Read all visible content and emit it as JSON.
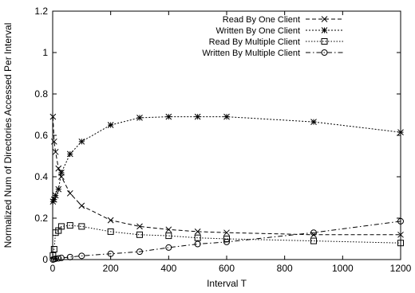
{
  "chart_data": {
    "type": "line",
    "title": "",
    "xlabel": "Interval T",
    "ylabel": "Normalized Num of Directories Accessed Per Interval",
    "xlim": [
      0,
      1200
    ],
    "ylim": [
      0,
      1.2
    ],
    "xticks": [
      0,
      200,
      400,
      600,
      800,
      1000,
      1200
    ],
    "yticks": [
      0,
      0.2,
      0.4,
      0.6,
      0.8,
      1,
      1.2
    ],
    "xtick_labels": [
      "0",
      "200",
      "400",
      "600",
      "800",
      "1000",
      "1200"
    ],
    "ytick_labels": [
      "0",
      "0.2",
      "0.4",
      "0.6",
      "0.8",
      "1",
      "1.2"
    ],
    "grid": false,
    "legend_position": "top-right",
    "series": [
      {
        "name": "Read By One Client",
        "marker": "x",
        "dash": "dashed",
        "x": [
          1,
          5,
          10,
          20,
          30,
          60,
          100,
          200,
          300,
          400,
          500,
          600,
          900,
          1200
        ],
        "y": [
          0.69,
          0.57,
          0.52,
          0.44,
          0.4,
          0.32,
          0.26,
          0.19,
          0.16,
          0.145,
          0.135,
          0.13,
          0.12,
          0.12
        ]
      },
      {
        "name": "Written By One Client",
        "marker": "asterisk",
        "dash": "dotted-dense",
        "x": [
          1,
          5,
          10,
          20,
          30,
          60,
          100,
          200,
          300,
          400,
          500,
          600,
          900,
          1200
        ],
        "y": [
          0.28,
          0.29,
          0.31,
          0.34,
          0.42,
          0.51,
          0.57,
          0.65,
          0.685,
          0.69,
          0.69,
          0.69,
          0.665,
          0.615
        ]
      },
      {
        "name": "Read By Multiple Client",
        "marker": "square",
        "dash": "dotted",
        "x": [
          1,
          5,
          10,
          20,
          30,
          60,
          100,
          200,
          300,
          400,
          500,
          600,
          900,
          1200
        ],
        "y": [
          0.02,
          0.05,
          0.13,
          0.14,
          0.16,
          0.165,
          0.16,
          0.135,
          0.12,
          0.115,
          0.105,
          0.1,
          0.09,
          0.08
        ]
      },
      {
        "name": "Written By Multiple Client",
        "marker": "circle",
        "dash": "dash-dot",
        "x": [
          1,
          5,
          10,
          20,
          30,
          60,
          100,
          200,
          300,
          400,
          500,
          600,
          900,
          1200
        ],
        "y": [
          0.0,
          0.002,
          0.004,
          0.006,
          0.008,
          0.012,
          0.018,
          0.028,
          0.038,
          0.058,
          0.075,
          0.085,
          0.13,
          0.185
        ]
      }
    ]
  }
}
